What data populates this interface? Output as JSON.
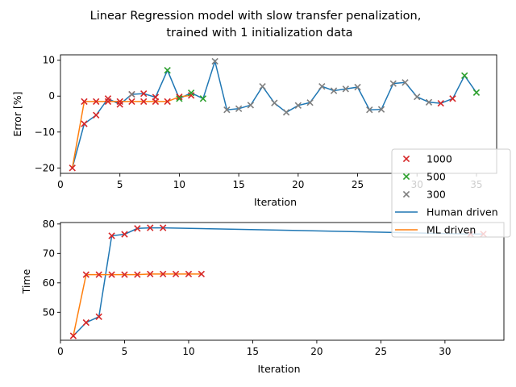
{
  "figure": {
    "title_line1": "Linear Regression model with slow transfer  penalization,",
    "title_line2": "trained with 1 initialization data"
  },
  "colors": {
    "human": "#1f77b4",
    "ml": "#ff7f0e",
    "m1000": "#d62728",
    "m500": "#2ca02c",
    "m300": "#7f7f7f"
  },
  "legend": {
    "placement": "right, overlapping both subplots",
    "entries": [
      {
        "label": "1000",
        "kind": "marker",
        "color_key": "m1000"
      },
      {
        "label": "500",
        "kind": "marker",
        "color_key": "m500"
      },
      {
        "label": "300",
        "kind": "marker",
        "color_key": "m300"
      },
      {
        "label": "Human driven",
        "kind": "line",
        "color_key": "human"
      },
      {
        "label": "ML driven",
        "kind": "line",
        "color_key": "ml"
      }
    ]
  },
  "chart_data": [
    {
      "type": "line",
      "xlabel": "Iteration",
      "ylabel": "Error [%]",
      "xlim": [
        0,
        36.7
      ],
      "ylim": [
        -21.5,
        11.5
      ],
      "xticks": [
        0,
        5,
        10,
        15,
        20,
        25,
        30,
        35
      ],
      "yticks": [
        -20,
        -10,
        0,
        10
      ],
      "grid": false,
      "series": [
        {
          "name": "Human driven",
          "color_key": "human",
          "x": [
            1,
            2,
            3,
            4,
            5,
            6,
            7,
            8,
            9,
            10,
            11,
            12,
            13,
            14,
            15,
            16,
            17,
            18,
            19,
            20,
            21,
            22,
            23,
            24,
            25,
            26,
            27,
            28,
            29,
            30,
            31,
            32,
            33,
            34,
            35
          ],
          "y": [
            -20,
            -7.7,
            -5.3,
            -0.7,
            -2.3,
            0.5,
            0.7,
            -0.3,
            7.2,
            -0.7,
            0.9,
            -0.7,
            9.7,
            -3.8,
            -3.5,
            -2.5,
            2.7,
            -1.9,
            -4.5,
            -2.6,
            -1.8,
            2.7,
            1.5,
            2.0,
            2.5,
            -3.8,
            -3.7,
            3.5,
            3.8,
            -0.2,
            -1.7,
            -2.0,
            -0.7,
            5.7,
            1.0
          ]
        },
        {
          "name": "ML driven",
          "color_key": "ml",
          "x": [
            1,
            2,
            3,
            4,
            5,
            6,
            7,
            8,
            9,
            10,
            11
          ],
          "y": [
            -20,
            -1.5,
            -1.5,
            -1.5,
            -1.5,
            -1.5,
            -1.5,
            -1.5,
            -1.5,
            -0.2,
            0.2
          ]
        }
      ],
      "markers": [
        {
          "color_key": "m1000",
          "x": [
            1,
            2,
            3,
            4,
            5,
            6,
            7,
            8,
            9,
            10,
            11,
            32,
            33
          ],
          "y": [
            -20,
            -1.5,
            -1.5,
            -1.5,
            -1.5,
            -1.5,
            -1.5,
            -1.5,
            -1.5,
            -0.2,
            0.2,
            -2.0,
            -0.7
          ]
        },
        {
          "color_key": "m1000",
          "x": [
            2,
            3,
            4,
            5,
            6,
            7,
            8
          ],
          "y": [
            -7.7,
            -5.3,
            -0.7,
            -2.3,
            0.5,
            0.7,
            -0.3
          ]
        },
        {
          "color_key": "m500",
          "x": [
            9,
            10,
            11,
            12,
            34,
            35
          ],
          "y": [
            7.2,
            -0.7,
            0.9,
            -0.7,
            5.7,
            1.0
          ]
        },
        {
          "color_key": "m300",
          "x": [
            6,
            13,
            14,
            15,
            16,
            17,
            18,
            19,
            20,
            21,
            22,
            23,
            24,
            25,
            26,
            27,
            28,
            29,
            30,
            31
          ],
          "y": [
            0.5,
            9.7,
            -3.8,
            -3.5,
            -2.5,
            2.7,
            -1.9,
            -4.5,
            -2.6,
            -1.8,
            2.7,
            1.5,
            2.0,
            2.5,
            -3.8,
            -3.7,
            3.5,
            3.8,
            -0.2,
            -1.7
          ]
        }
      ]
    },
    {
      "type": "line",
      "xlabel": "Iteration",
      "ylabel": "Time",
      "xlim": [
        0,
        34.6
      ],
      "ylim": [
        40.5,
        80.5
      ],
      "xticks": [
        0,
        5,
        10,
        15,
        20,
        25,
        30
      ],
      "yticks": [
        50,
        60,
        70,
        80
      ],
      "grid": false,
      "series": [
        {
          "name": "Human driven",
          "color_key": "human",
          "x": [
            1,
            2,
            3,
            4,
            5,
            6,
            7,
            8,
            32,
            33
          ],
          "y": [
            42,
            46.5,
            48.5,
            76,
            76.5,
            78.5,
            78.7,
            78.7,
            76.6,
            76.6
          ]
        },
        {
          "name": "ML driven",
          "color_key": "ml",
          "x": [
            1,
            2,
            3,
            4,
            5,
            6,
            7,
            8,
            9,
            10,
            11
          ],
          "y": [
            42,
            62.8,
            62.8,
            62.8,
            62.8,
            62.8,
            63,
            63,
            63,
            63,
            63
          ]
        }
      ],
      "markers": [
        {
          "color_key": "m1000",
          "x": [
            1,
            2,
            3,
            4,
            5,
            6,
            7,
            8,
            9,
            10,
            11
          ],
          "y": [
            42,
            62.8,
            62.8,
            62.8,
            62.8,
            62.8,
            63,
            63,
            63,
            63,
            63
          ]
        },
        {
          "color_key": "m1000",
          "x": [
            2,
            3,
            4,
            5,
            6,
            7,
            8,
            32,
            33
          ],
          "y": [
            46.5,
            48.5,
            76,
            76.5,
            78.5,
            78.7,
            78.7,
            76.6,
            76.6
          ]
        }
      ]
    }
  ]
}
